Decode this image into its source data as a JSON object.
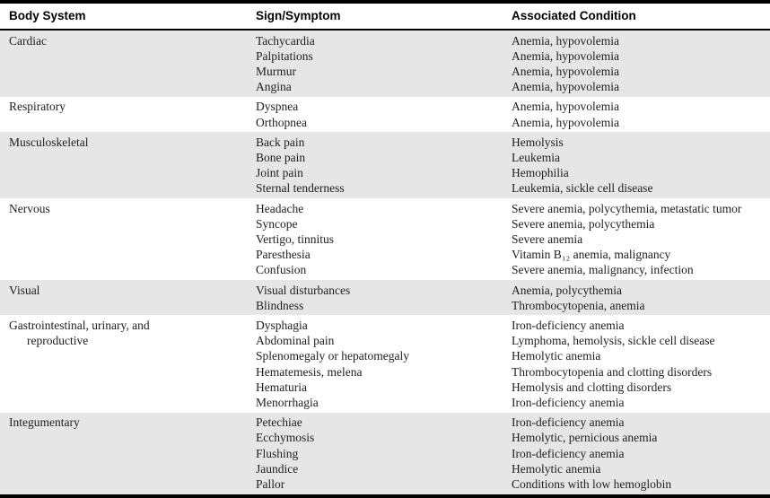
{
  "header": {
    "columns": [
      "Body System",
      "Sign/Symptom",
      "Associated Condition"
    ]
  },
  "colors": {
    "band_gray": "#e6e6e6",
    "band_white": "#ffffff",
    "rule_black": "#000000",
    "text": "#1e1e1e"
  },
  "sections": [
    {
      "body_system": "Cardiac",
      "shaded": true,
      "rows": [
        {
          "sign": "Tachycardia",
          "condition": "Anemia, hypovolemia"
        },
        {
          "sign": "Palpitations",
          "condition": "Anemia, hypovolemia"
        },
        {
          "sign": "Murmur",
          "condition": "Anemia, hypovolemia"
        },
        {
          "sign": "Angina",
          "condition": "Anemia, hypovolemia"
        }
      ]
    },
    {
      "body_system": "Respiratory",
      "shaded": false,
      "rows": [
        {
          "sign": "Dyspnea",
          "condition": "Anemia, hypovolemia"
        },
        {
          "sign": "Orthopnea",
          "condition": "Anemia, hypovolemia"
        }
      ]
    },
    {
      "body_system": "Musculoskeletal",
      "shaded": true,
      "rows": [
        {
          "sign": "Back pain",
          "condition": "Hemolysis"
        },
        {
          "sign": "Bone pain",
          "condition": "Leukemia"
        },
        {
          "sign": "Joint pain",
          "condition": "Hemophilia"
        },
        {
          "sign": "Sternal tenderness",
          "condition": "Leukemia, sickle cell disease"
        }
      ]
    },
    {
      "body_system": "Nervous",
      "shaded": false,
      "rows": [
        {
          "sign": "Headache",
          "condition": "Severe anemia, polycythemia, metastatic tumor"
        },
        {
          "sign": "Syncope",
          "condition": "Severe anemia, polycythemia"
        },
        {
          "sign": "Vertigo, tinnitus",
          "condition": "Severe anemia"
        },
        {
          "sign": "Paresthesia",
          "condition": "Vitamin B₁₂ anemia, malignancy"
        },
        {
          "sign": "Confusion",
          "condition": "Severe anemia, malignancy, infection"
        }
      ]
    },
    {
      "body_system": "Visual",
      "shaded": true,
      "rows": [
        {
          "sign": "Visual disturbances",
          "condition": "Anemia, polycythemia"
        },
        {
          "sign": "Blindness",
          "condition": "Thrombocytopenia, anemia"
        }
      ]
    },
    {
      "body_system": "Gastrointestinal, urinary, and",
      "body_system_line2": "reproductive",
      "shaded": false,
      "rows": [
        {
          "sign": "Dysphagia",
          "condition": "Iron-deficiency anemia"
        },
        {
          "sign": "Abdominal pain",
          "condition": "Lymphoma, hemolysis, sickle cell disease"
        },
        {
          "sign": "Splenomegaly or hepatomegaly",
          "condition": "Hemolytic anemia"
        },
        {
          "sign": "Hematemesis, melena",
          "condition": "Thrombocytopenia and clotting disorders"
        },
        {
          "sign": "Hematuria",
          "condition": "Hemolysis and clotting disorders"
        },
        {
          "sign": "Menorrhagia",
          "condition": "Iron-deficiency anemia"
        }
      ]
    },
    {
      "body_system": "Integumentary",
      "shaded": true,
      "rows": [
        {
          "sign": "Petechiae",
          "condition": "Iron-deficiency anemia"
        },
        {
          "sign": "Ecchymosis",
          "condition": "Hemolytic, pernicious anemia"
        },
        {
          "sign": "Flushing",
          "condition": "Iron-deficiency anemia"
        },
        {
          "sign": "Jaundice",
          "condition": "Hemolytic anemia"
        },
        {
          "sign": "Pallor",
          "condition": "Conditions with low hemoglobin"
        }
      ]
    }
  ]
}
